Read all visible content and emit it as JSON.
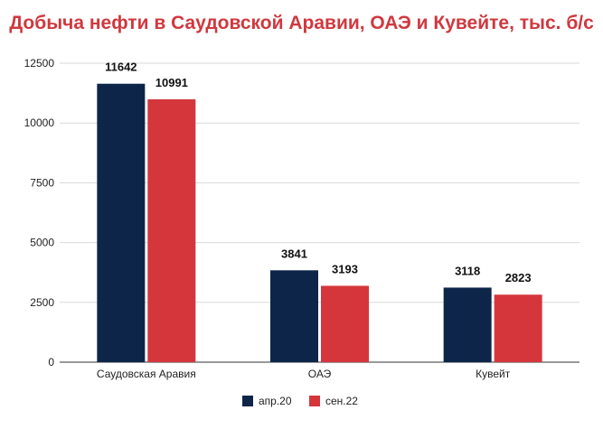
{
  "chart_data": {
    "type": "bar",
    "title": "Добыча нефти в Саудовской Аравии, ОАЭ и Кувейте, тыс. б/с",
    "xlabel": "",
    "ylabel": "",
    "categories": [
      "Саудовская Аравия",
      "ОАЭ",
      "Кувейт"
    ],
    "series": [
      {
        "name": "апр.20",
        "color": "#0d2548",
        "values": [
          11642,
          3841,
          3118
        ]
      },
      {
        "name": "сен.22",
        "color": "#d4363c",
        "values": [
          10991,
          3193,
          2823
        ]
      }
    ],
    "ylim": [
      0,
      12500
    ],
    "yticks": [
      "0",
      "2500",
      "5000",
      "7500",
      "10000",
      "12500"
    ],
    "grid": true,
    "legend_position": "bottom-center"
  }
}
